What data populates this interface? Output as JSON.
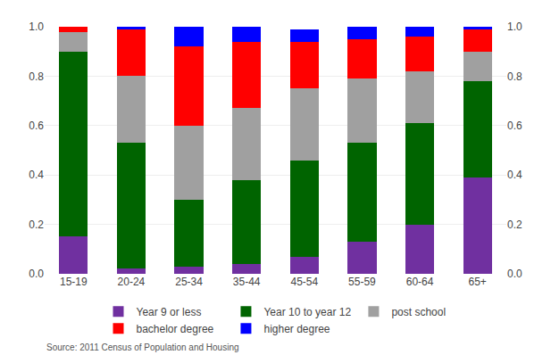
{
  "chart_data": {
    "type": "bar",
    "stacked": true,
    "categories": [
      "15-19",
      "20-24",
      "25-34",
      "35-44",
      "45-54",
      "55-59",
      "60-64",
      "65+"
    ],
    "series": [
      {
        "name": "Year 9 or less",
        "color": "#7030A0",
        "values": [
          0.15,
          0.02,
          0.03,
          0.04,
          0.07,
          0.13,
          0.2,
          0.39
        ]
      },
      {
        "name": "Year 10 to year 12",
        "color": "#006400",
        "values": [
          0.75,
          0.51,
          0.27,
          0.34,
          0.39,
          0.4,
          0.41,
          0.39
        ]
      },
      {
        "name": "post school",
        "color": "#A0A0A0",
        "values": [
          0.08,
          0.27,
          0.3,
          0.29,
          0.29,
          0.26,
          0.21,
          0.12
        ]
      },
      {
        "name": "bachelor degree",
        "color": "#FF0000",
        "values": [
          0.02,
          0.19,
          0.32,
          0.27,
          0.19,
          0.16,
          0.14,
          0.09
        ]
      },
      {
        "name": "higher degree",
        "color": "#0000FF",
        "values": [
          0.0,
          0.01,
          0.08,
          0.06,
          0.05,
          0.05,
          0.04,
          0.01
        ]
      }
    ],
    "ylim": [
      0.0,
      1.0
    ],
    "yticks": [
      {
        "value": 0,
        "label": "0.0"
      },
      0.2,
      0.4,
      0.6,
      0.8,
      {
        "value": 1,
        "label": "1.0"
      }
    ],
    "y2lim": [
      0.0,
      1.0
    ],
    "y2ticks": [
      {
        "value": 0,
        "label": "0.0"
      },
      0.2,
      0.4,
      0.6,
      0.8,
      {
        "value": 1,
        "label": "1.0"
      }
    ],
    "grid": true,
    "legend": "bottom",
    "annotations": [
      "Source: 2011 Census of Population and Housing"
    ]
  }
}
